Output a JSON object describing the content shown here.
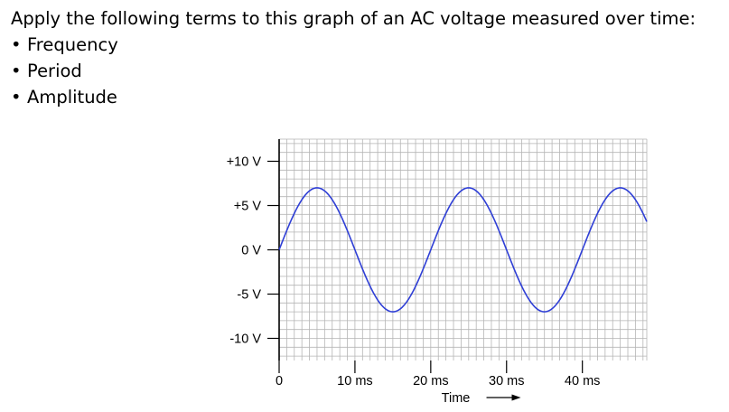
{
  "prompt": {
    "question": "Apply the following terms to this graph of an AC voltage measured over time:",
    "bullet": "•",
    "terms": [
      "Frequency",
      "Period",
      "Amplitude"
    ]
  },
  "chart_data": {
    "type": "line",
    "xlabel": "Time",
    "ylabel": "",
    "x_tick_labels": [
      "0",
      "10 ms",
      "20 ms",
      "30 ms",
      "40 ms"
    ],
    "x_ticks": [
      0,
      10,
      20,
      30,
      40
    ],
    "y_tick_labels": [
      "+10 V",
      "+5 V",
      "0 V",
      "-5 V",
      "-10 V"
    ],
    "y_ticks": [
      10,
      5,
      0,
      -5,
      -10
    ],
    "xlim": [
      0,
      48.5
    ],
    "ylim": [
      -12.5,
      12.5
    ],
    "grid": true,
    "series": [
      {
        "amplitude": 7,
        "period_ms": 20,
        "x_range": [
          0,
          48.5
        ],
        "color": "#2f3fd6"
      }
    ]
  },
  "colors": {
    "grid": "#b5b5b5",
    "axis": "#000000",
    "wave": "#2f3fd6"
  }
}
